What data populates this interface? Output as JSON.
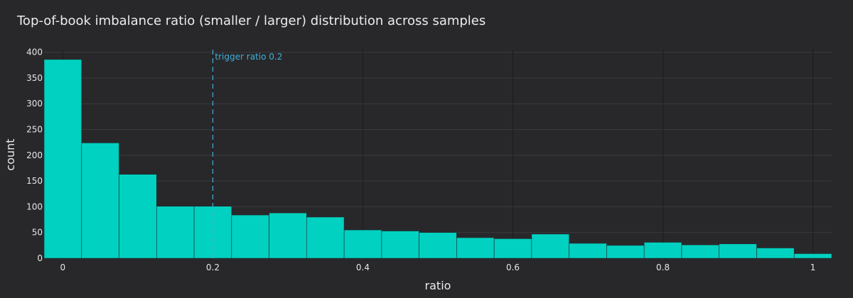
{
  "chart_data": {
    "type": "bar",
    "title": "Top-of-book imbalance ratio (smaller / larger) distribution across samples",
    "xlabel": "ratio",
    "ylabel": "count",
    "xlim": [
      -0.025,
      1.025
    ],
    "ylim": [
      0,
      405
    ],
    "bin_width": 0.05,
    "x_ticks": [
      0,
      0.2,
      0.4,
      0.6,
      0.8,
      1
    ],
    "x_tick_labels": [
      "0",
      "0.2",
      "0.4",
      "0.6",
      "0.8",
      "1"
    ],
    "y_ticks": [
      0,
      50,
      100,
      150,
      200,
      250,
      300,
      350,
      400
    ],
    "y_tick_labels": [
      "0",
      "50",
      "100",
      "150",
      "200",
      "250",
      "300",
      "350",
      "400"
    ],
    "bins": [
      {
        "x0": -0.025,
        "x1": 0.025,
        "count": 386
      },
      {
        "x0": 0.025,
        "x1": 0.075,
        "count": 224
      },
      {
        "x0": 0.075,
        "x1": 0.125,
        "count": 163
      },
      {
        "x0": 0.125,
        "x1": 0.175,
        "count": 101
      },
      {
        "x0": 0.175,
        "x1": 0.225,
        "count": 101
      },
      {
        "x0": 0.225,
        "x1": 0.275,
        "count": 84
      },
      {
        "x0": 0.275,
        "x1": 0.325,
        "count": 88
      },
      {
        "x0": 0.325,
        "x1": 0.375,
        "count": 80
      },
      {
        "x0": 0.375,
        "x1": 0.425,
        "count": 55
      },
      {
        "x0": 0.425,
        "x1": 0.475,
        "count": 53
      },
      {
        "x0": 0.475,
        "x1": 0.525,
        "count": 50
      },
      {
        "x0": 0.525,
        "x1": 0.575,
        "count": 40
      },
      {
        "x0": 0.575,
        "x1": 0.625,
        "count": 38
      },
      {
        "x0": 0.625,
        "x1": 0.675,
        "count": 47
      },
      {
        "x0": 0.675,
        "x1": 0.725,
        "count": 29
      },
      {
        "x0": 0.725,
        "x1": 0.775,
        "count": 25
      },
      {
        "x0": 0.775,
        "x1": 0.825,
        "count": 31
      },
      {
        "x0": 0.825,
        "x1": 0.875,
        "count": 26
      },
      {
        "x0": 0.875,
        "x1": 0.925,
        "count": 28
      },
      {
        "x0": 0.925,
        "x1": 0.975,
        "count": 20
      },
      {
        "x0": 0.975,
        "x1": 1.025,
        "count": 9
      }
    ],
    "annotations": [
      {
        "type": "vline",
        "x": 0.2,
        "label": "trigger ratio 0.2",
        "color": "#3fb0d8",
        "dash": "dash"
      }
    ],
    "bar_color": "#00d1c1",
    "grid": true
  }
}
